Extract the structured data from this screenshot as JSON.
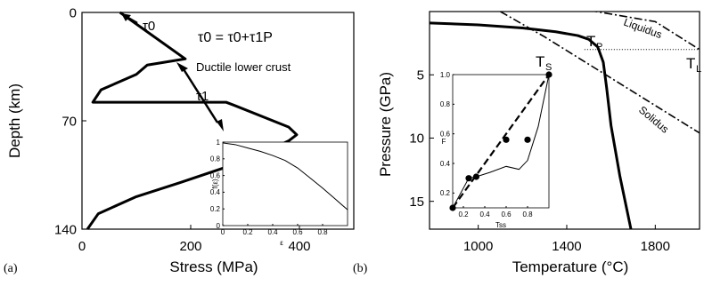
{
  "chart_data": [
    {
      "type": "line",
      "panel_label": "(a)",
      "xlabel": "Stress (MPa)",
      "ylabel": "Depth (km)",
      "xlim": [
        0,
        500
      ],
      "ylim": [
        140,
        0
      ],
      "x_ticks": [
        0,
        200,
        400
      ],
      "y_ticks": [
        0,
        70,
        140
      ],
      "series": [
        {
          "x": [
            70,
            190,
            120,
            100,
            35,
            20,
            265,
            280,
            380,
            395,
            380,
            350,
            290,
            180,
            100,
            30,
            10
          ],
          "y": [
            0,
            30,
            34,
            40,
            50,
            58,
            58,
            60,
            74,
            79,
            83,
            88,
            97,
            110,
            119,
            130,
            140
          ]
        }
      ],
      "annotations": {
        "tau0_label": "τ0",
        "tau1_label": "τ1",
        "equation": "τ0 = τ0+τ1P",
        "region": "Ductile lower crust"
      }
    },
    {
      "type": "line",
      "panel_label": "inset",
      "xlabel": "ε",
      "ylabel": "f(ε)",
      "xlim": [
        0,
        1
      ],
      "ylim": [
        0,
        1
      ],
      "x_ticks": [
        "0",
        "0.2",
        "0.4",
        "0.6",
        "0.8"
      ],
      "y_ticks": [
        "0",
        "0.2",
        "0.4",
        "0.6",
        "0.8",
        "1"
      ],
      "series": [
        {
          "x": [
            0,
            0.1,
            0.2,
            0.3,
            0.4,
            0.5,
            0.6,
            0.7,
            0.8,
            0.9,
            1.0
          ],
          "y": [
            0.99,
            0.97,
            0.93,
            0.89,
            0.84,
            0.78,
            0.69,
            0.57,
            0.45,
            0.32,
            0.19
          ]
        }
      ]
    },
    {
      "type": "line",
      "panel_label": "(b)",
      "xlabel": "Temperature (°C)",
      "ylabel": "Pressure (GPa)",
      "xlim": [
        780,
        2000
      ],
      "ylim": [
        17.2,
        0
      ],
      "x_ticks": [
        1000,
        1400,
        1800
      ],
      "y_ticks": [
        5,
        10,
        15
      ],
      "series": [
        {
          "style": "solid",
          "x": [
            780,
            1000,
            1200,
            1350,
            1450,
            1500,
            1540,
            1565,
            1580,
            1600,
            1640,
            1690
          ],
          "y": [
            0.9,
            1.05,
            1.3,
            1.6,
            1.9,
            2.2,
            2.8,
            4.0,
            6.0,
            9.0,
            13.0,
            17.2
          ]
        },
        {
          "style": "dash-dot",
          "label": "Liquidus",
          "x": [
            1300,
            1800,
            2000
          ],
          "y": [
            -0.7,
            0.8,
            3.0
          ]
        },
        {
          "style": "dash-dot",
          "label": "Solidus",
          "x": [
            1100,
            1300,
            2000
          ],
          "y": [
            0.0,
            2.0,
            9.6
          ]
        },
        {
          "style": "dotted",
          "x": [
            1480,
            2000
          ],
          "y": [
            3.0,
            3.0
          ]
        }
      ],
      "point_labels": {
        "tp_main": "T",
        "tp_sub": "P",
        "ts_main": "T",
        "ts_sub": "S",
        "tl_main": "T",
        "tl_sub": "L"
      },
      "annotations": {
        "liquidus": "Liquidus",
        "solidus": "Solidus"
      }
    },
    {
      "type": "scatter",
      "panel_label": "inset",
      "xlabel": "Tss",
      "ylabel": "F",
      "xlim": [
        0.1,
        1.0
      ],
      "ylim": [
        0.1,
        1.0
      ],
      "x_ticks": [
        "0.2",
        "0.4",
        "0.6",
        "0.8"
      ],
      "y_ticks": [
        "0.2",
        "0.4",
        "0.6",
        "0.8",
        "1.0"
      ],
      "points": [
        [
          0.1,
          0.1
        ],
        [
          0.25,
          0.3
        ],
        [
          0.32,
          0.31
        ],
        [
          0.6,
          0.56
        ],
        [
          0.8,
          0.56
        ],
        [
          1.0,
          1.0
        ]
      ],
      "series": [
        {
          "style": "dashed",
          "x": [
            0.1,
            1.0
          ],
          "y": [
            0.1,
            1.0
          ]
        },
        {
          "style": "solid",
          "x": [
            0.1,
            0.25,
            0.32,
            0.45,
            0.6,
            0.72,
            0.8,
            0.9,
            1.0
          ],
          "y": [
            0.1,
            0.3,
            0.31,
            0.34,
            0.38,
            0.36,
            0.42,
            0.65,
            1.0
          ]
        }
      ]
    }
  ]
}
